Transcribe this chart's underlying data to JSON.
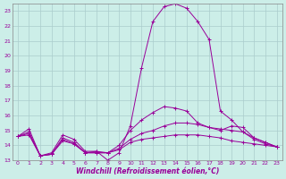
{
  "xlabel": "Windchill (Refroidissement éolien,°C)",
  "ylabel": "",
  "bg_color": "#cceee8",
  "line_color": "#990099",
  "grid_color": "#aacccc",
  "xlim": [
    -0.5,
    23.5
  ],
  "ylim": [
    13.0,
    23.5
  ],
  "yticks": [
    13,
    14,
    15,
    16,
    17,
    18,
    19,
    20,
    21,
    22,
    23
  ],
  "xticks": [
    0,
    1,
    2,
    3,
    4,
    5,
    6,
    7,
    8,
    9,
    10,
    11,
    12,
    13,
    14,
    15,
    16,
    17,
    18,
    19,
    20,
    21,
    22,
    23
  ],
  "lines": [
    {
      "x": [
        0,
        1,
        2,
        3,
        4,
        5,
        6,
        7,
        8,
        9,
        10,
        11,
        12,
        13,
        14,
        15,
        16,
        17,
        18,
        19,
        20,
        21,
        22,
        23
      ],
      "y": [
        14.6,
        15.1,
        13.3,
        13.5,
        14.7,
        14.4,
        13.6,
        13.6,
        13.0,
        13.5,
        15.3,
        19.2,
        22.3,
        23.3,
        23.5,
        23.2,
        22.3,
        21.1,
        16.3,
        15.7,
        14.9,
        14.4,
        14.1,
        13.9
      ]
    },
    {
      "x": [
        0,
        1,
        2,
        3,
        4,
        5,
        6,
        7,
        8,
        9,
        10,
        11,
        12,
        13,
        14,
        15,
        16,
        17,
        18,
        19,
        20,
        21,
        22,
        23
      ],
      "y": [
        14.6,
        14.9,
        13.3,
        13.4,
        14.5,
        14.2,
        13.5,
        13.6,
        13.5,
        14.0,
        15.0,
        15.7,
        16.2,
        16.6,
        16.5,
        16.3,
        15.5,
        15.2,
        15.0,
        15.3,
        15.2,
        14.5,
        14.2,
        13.9
      ]
    },
    {
      "x": [
        0,
        1,
        2,
        3,
        4,
        5,
        6,
        7,
        8,
        9,
        10,
        11,
        12,
        13,
        14,
        15,
        16,
        17,
        18,
        19,
        20,
        21,
        22,
        23
      ],
      "y": [
        14.6,
        14.8,
        13.3,
        13.4,
        14.4,
        14.1,
        13.5,
        13.5,
        13.5,
        13.8,
        14.4,
        14.8,
        15.0,
        15.3,
        15.5,
        15.5,
        15.4,
        15.2,
        15.1,
        15.0,
        14.9,
        14.5,
        14.2,
        13.9
      ]
    },
    {
      "x": [
        0,
        1,
        2,
        3,
        4,
        5,
        6,
        7,
        8,
        9,
        10,
        11,
        12,
        13,
        14,
        15,
        16,
        17,
        18,
        19,
        20,
        21,
        22,
        23
      ],
      "y": [
        14.6,
        14.7,
        13.3,
        13.4,
        14.3,
        14.1,
        13.5,
        13.5,
        13.5,
        13.7,
        14.2,
        14.4,
        14.5,
        14.6,
        14.7,
        14.7,
        14.7,
        14.6,
        14.5,
        14.3,
        14.2,
        14.1,
        14.0,
        13.9
      ]
    }
  ]
}
